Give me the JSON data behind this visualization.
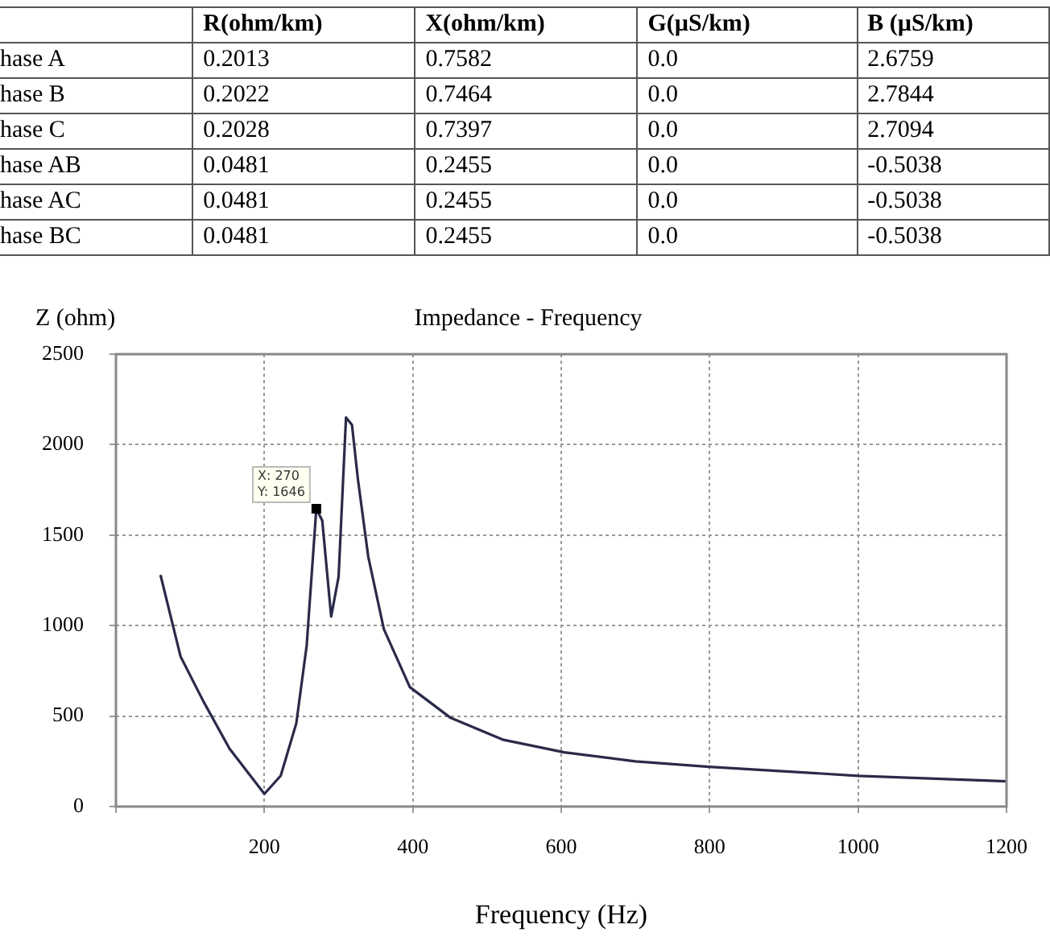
{
  "chart_data": [
    {
      "type": "other",
      "categories": [
        null,
        "R(ohm/km)",
        "X(ohm/km)",
        "G(µS/km)",
        "B (µS/km)"
      ],
      "y_categories": [
        "hase A",
        "hase B",
        "hase C",
        "hase AB",
        "hase AC",
        "hase BC"
      ],
      "cell_labels": [
        [
          "0.2013",
          "0.7582",
          "0.0",
          "2.6759"
        ],
        [
          "0.2022",
          "0.7464",
          "0.0",
          "2.7844"
        ],
        [
          "0.2028",
          "0.7397",
          "0.0",
          "2.7094"
        ],
        [
          "0.0481",
          "0.2455",
          "0.0",
          "-0.5038"
        ],
        [
          "0.0481",
          "0.2455",
          "0.0",
          "-0.5038"
        ],
        [
          "0.0481",
          "0.2455",
          "0.0",
          "-0.5038"
        ]
      ]
    },
    {
      "type": "line",
      "title": "Impedance - Frequency",
      "xlabel": "Frequency (Hz)",
      "ylabel": "Z (ohm)",
      "x": [
        60,
        87,
        118,
        153,
        200,
        222,
        243,
        257,
        270,
        278,
        290,
        300,
        310,
        318,
        326,
        340,
        361,
        396,
        451,
        521,
        604,
        700,
        799,
        1000,
        1200
      ],
      "series": [
        {
          "color": "#2a2a4a",
          "values": [
            1280,
            830,
            580,
            320,
            70,
            170,
            460,
            890,
            1646,
            1580,
            1050,
            1270,
            2150,
            2110,
            1810,
            1380,
            980,
            660,
            490,
            370,
            300,
            250,
            220,
            170,
            140
          ]
        }
      ],
      "xlim": [
        0,
        1200
      ],
      "xticks": [
        {
          "value": 0,
          "label": null
        },
        200,
        400,
        600,
        800,
        1000,
        1200
      ],
      "ylim": [
        0,
        2500
      ],
      "yticks": [
        0,
        500,
        1000,
        1500,
        2000,
        2500
      ],
      "grid": true,
      "line_style": "solid",
      "annotations": [
        {
          "text": "X: 270 Y: 1646",
          "x": 270,
          "y": 1646
        }
      ]
    }
  ]
}
